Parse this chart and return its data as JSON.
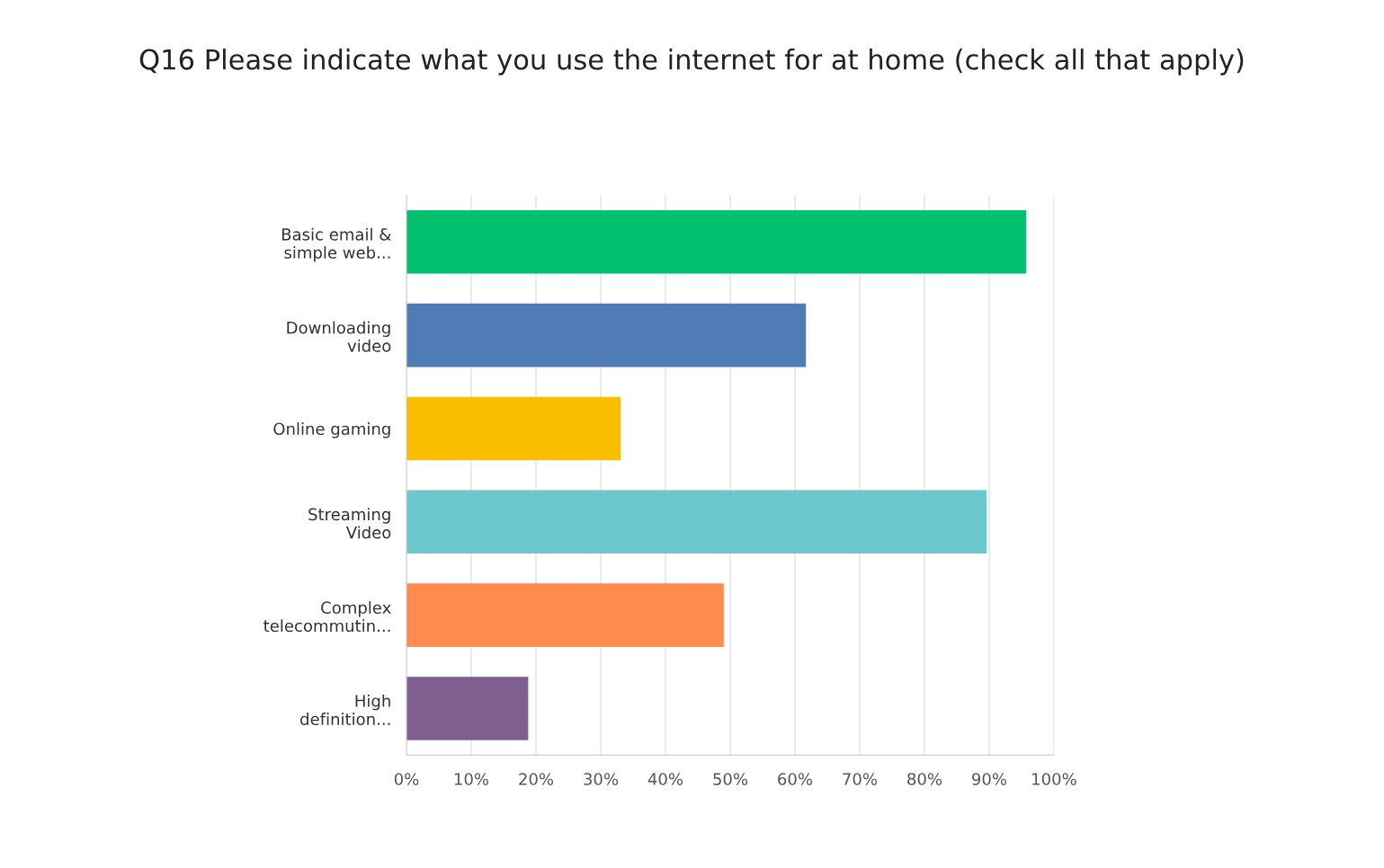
{
  "chart_data": {
    "type": "bar",
    "orientation": "horizontal",
    "title": "Q16 Please indicate what you use the internet for at home (check all that apply)",
    "categories": [
      "Basic email &\nsimple web...",
      "Downloading\nvideo",
      "Online gaming",
      "Streaming\nVideo",
      "Complex\ntelecommutin...",
      "High\ndefinition..."
    ],
    "values": [
      95.7,
      61.7,
      33.1,
      89.6,
      49.0,
      18.8
    ],
    "colors": [
      "#00bf6f",
      "#507cb6",
      "#f9be00",
      "#6bc8cd",
      "#ff8b4f",
      "#7f5f90"
    ],
    "xlim": [
      0,
      100
    ],
    "xticks": [
      {
        "value": 0,
        "label": "0%"
      },
      {
        "value": 10,
        "label": "10%"
      },
      {
        "value": 20,
        "label": "20%"
      },
      {
        "value": 30,
        "label": "30%"
      },
      {
        "value": 40,
        "label": "40%"
      },
      {
        "value": 50,
        "label": "50%"
      },
      {
        "value": 60,
        "label": "60%"
      },
      {
        "value": 70,
        "label": "70%"
      },
      {
        "value": 80,
        "label": "80%"
      },
      {
        "value": 90,
        "label": "90%"
      },
      {
        "value": 100,
        "label": "100%"
      }
    ],
    "grid": "x",
    "legend": false
  }
}
